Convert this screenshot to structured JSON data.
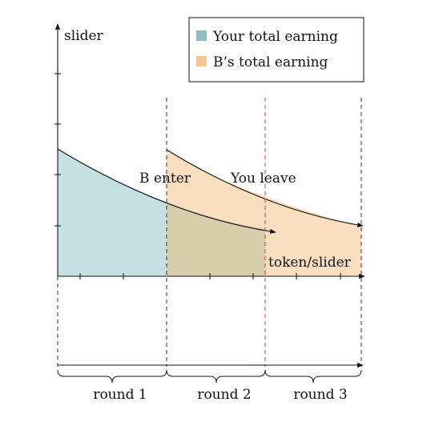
{
  "diagram": {
    "y_axis_label": "slider",
    "x_axis_label": "token/slider",
    "annotations": {
      "b_enter": "B enter",
      "you_leave": "You leave"
    },
    "legend": [
      {
        "label": "Your total earning",
        "color": "#8fbfc4"
      },
      {
        "label": "B’s total earning",
        "color": "#f5c690"
      }
    ],
    "rounds": [
      {
        "label": "round 1"
      },
      {
        "label": "round 2"
      },
      {
        "label": "round 3"
      }
    ],
    "colors": {
      "your_fill": "#c5e0e3",
      "b_fill": "#f9dfc0",
      "overlap_fill": "#d8cdaa",
      "leave_line": "#e53935"
    }
  }
}
